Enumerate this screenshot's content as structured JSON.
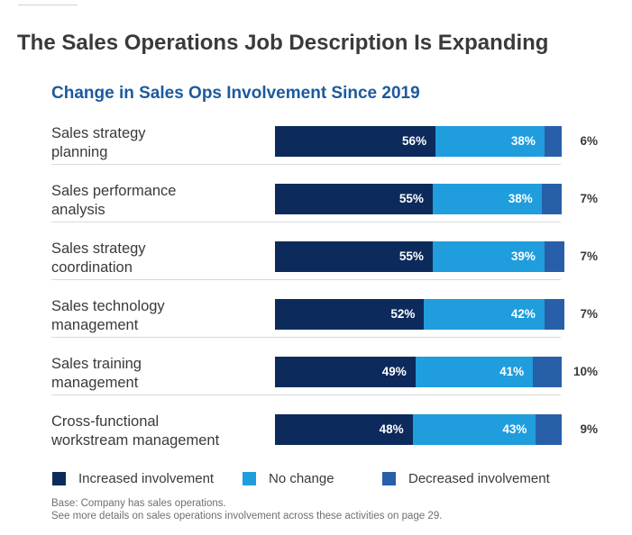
{
  "title": "The Sales Operations Job Description Is Expanding",
  "colors": {
    "increased": "#0c2b5c",
    "no_change": "#1f9ddc",
    "decreased": "#2760a8",
    "subtitle": "#1c5a9e"
  },
  "chart_data": {
    "type": "bar",
    "orientation": "horizontal",
    "stacked": true,
    "title": "Change in Sales Ops Involvement Since 2019",
    "categories": [
      [
        "Sales strategy",
        "planning"
      ],
      [
        "Sales performance",
        "analysis"
      ],
      [
        "Sales strategy",
        "coordination"
      ],
      [
        "Sales technology",
        "management"
      ],
      [
        "Sales training",
        "management"
      ],
      [
        "Cross-functional",
        "workstream management"
      ]
    ],
    "series": [
      {
        "name": "Increased involvement",
        "values": [
          56,
          55,
          55,
          52,
          49,
          48
        ]
      },
      {
        "name": "No change",
        "values": [
          38,
          38,
          39,
          42,
          41,
          43
        ]
      },
      {
        "name": "Decreased involvement",
        "values": [
          6,
          7,
          7,
          7,
          10,
          9
        ]
      }
    ],
    "value_suffix": "%",
    "xlim": [
      0,
      100
    ],
    "legend_position": "bottom"
  },
  "footnotes": [
    "Base: Company has sales operations.",
    "See more details on sales operations involvement across these activities on page 29."
  ]
}
